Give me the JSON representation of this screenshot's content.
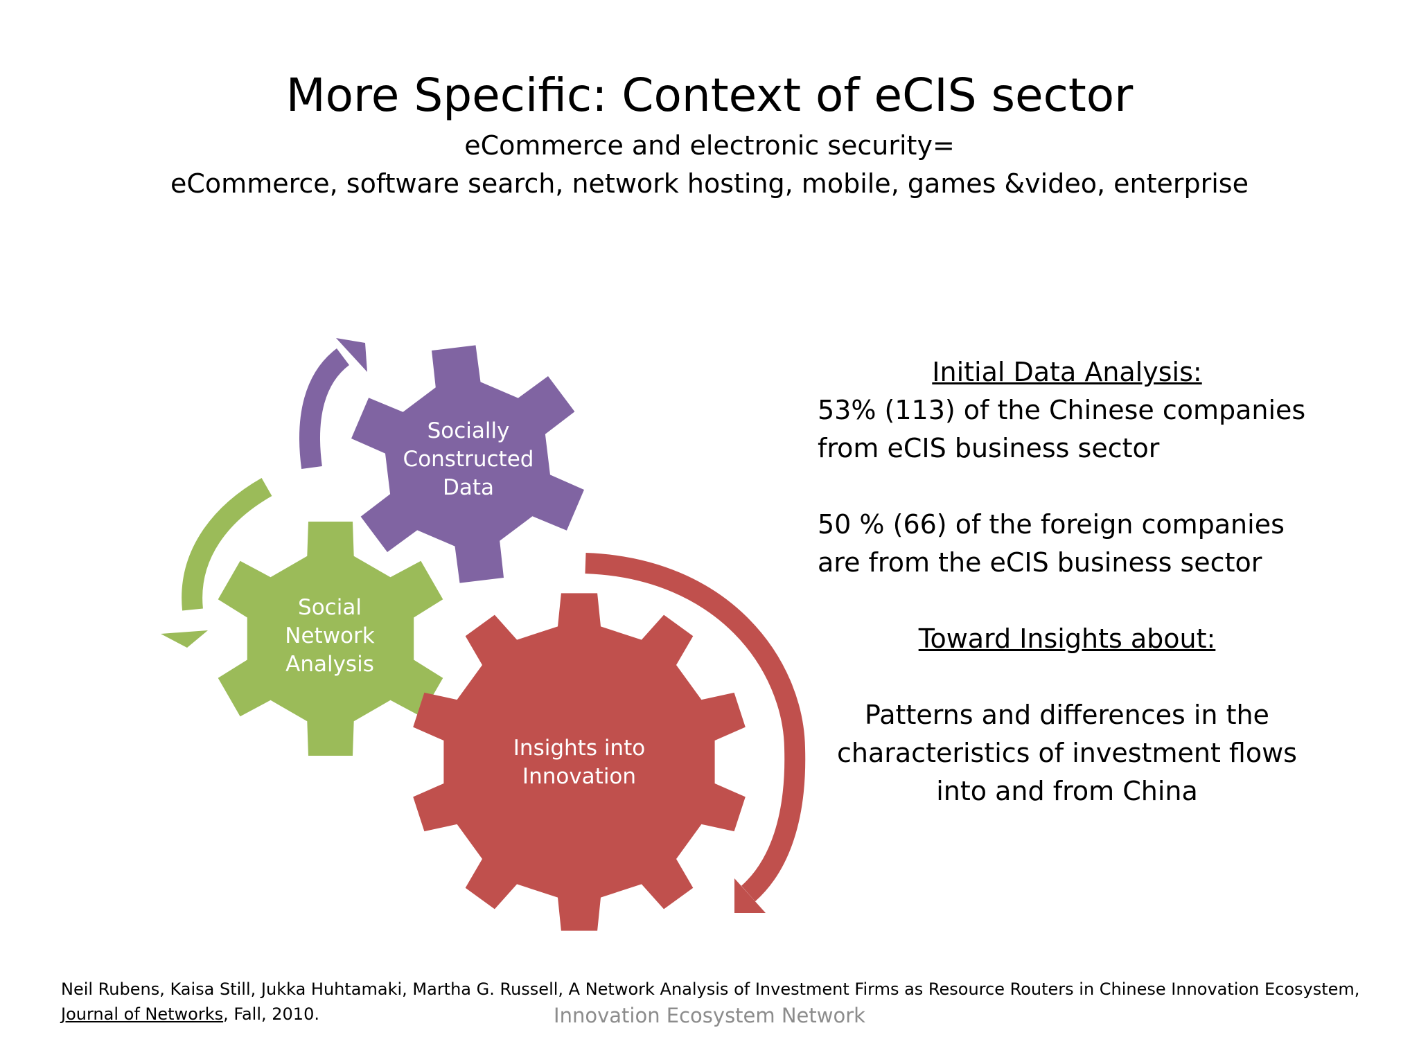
{
  "slide": {
    "title": "More Specific: Context of eCIS sector",
    "subtitle_line1": "eCommerce and electronic security=",
    "subtitle_line2": "eCommerce, software search, network hosting, mobile, games &video, enterprise"
  },
  "diagram": {
    "gears": [
      {
        "label_lines": [
          "Socially",
          "Constructed",
          "Data"
        ],
        "color": "#8064a2"
      },
      {
        "label_lines": [
          "Social",
          "Network",
          "Analysis"
        ],
        "color": "#9bbb59"
      },
      {
        "label_lines": [
          "Insights into",
          "Innovation"
        ],
        "color": "#c0504d"
      }
    ]
  },
  "analysis": {
    "heading1": "Initial Data Analysis:",
    "stat1_line1": "53% (113) of the Chinese companies",
    "stat1_line2": "from eCIS business sector",
    "stat2_line1": "50 % (66) of the foreign companies",
    "stat2_line2": "are from the eCIS business sector",
    "heading2": "Toward Insights about:",
    "insight_line1": "Patterns and differences in the",
    "insight_line2": "characteristics of investment flows",
    "insight_line3": "into and from China"
  },
  "citation": {
    "authors_text": "Neil Rubens, Kaisa Still, Jukka Huhtamaki, Martha G. Russell, A Network Analysis of Investment Firms as Resource Routers in Chinese Innovation Ecosystem, ",
    "journal": "Journal of Networks",
    "tail": ", Fall, 2010."
  },
  "footer": {
    "text": "Innovation Ecosystem Network"
  },
  "colors": {
    "purple": "#8064a2",
    "green": "#9bbb59",
    "red": "#c0504d",
    "footer_gray": "#8c8c8c"
  }
}
